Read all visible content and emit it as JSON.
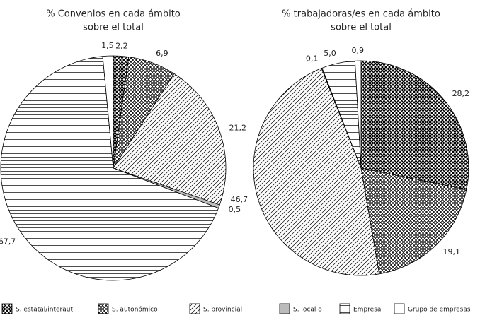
{
  "chart_data": [
    {
      "type": "pie",
      "title": [
        "% Convenios en cada ámbito",
        "sobre el total"
      ],
      "values": [
        2.2,
        6.9,
        21.2,
        0.5,
        67.7,
        1.5
      ],
      "value_labels": [
        "2,2",
        "6,9",
        "21,2",
        "0,5",
        "67,7",
        "1,5"
      ]
    },
    {
      "type": "pie",
      "title": [
        "% trabajadoras/es en cada ámbito",
        "sobre el total"
      ],
      "values": [
        28.2,
        19.1,
        46.7,
        0.1,
        5.0,
        0.9
      ],
      "value_labels": [
        "28,2",
        "19,1",
        "46,7",
        "0,1",
        "5,0",
        "0,9"
      ]
    }
  ],
  "legend": [
    {
      "name": "S. estatal/interaut.",
      "pattern": "crosshatch"
    },
    {
      "name": "S. autonómico",
      "pattern": "dots"
    },
    {
      "name": "S. provincial",
      "pattern": "diagonal"
    },
    {
      "name": "S. local o",
      "pattern": "gray"
    },
    {
      "name": "Empresa",
      "pattern": "horizontal"
    },
    {
      "name": "Grupo de empresas",
      "pattern": "white"
    }
  ]
}
